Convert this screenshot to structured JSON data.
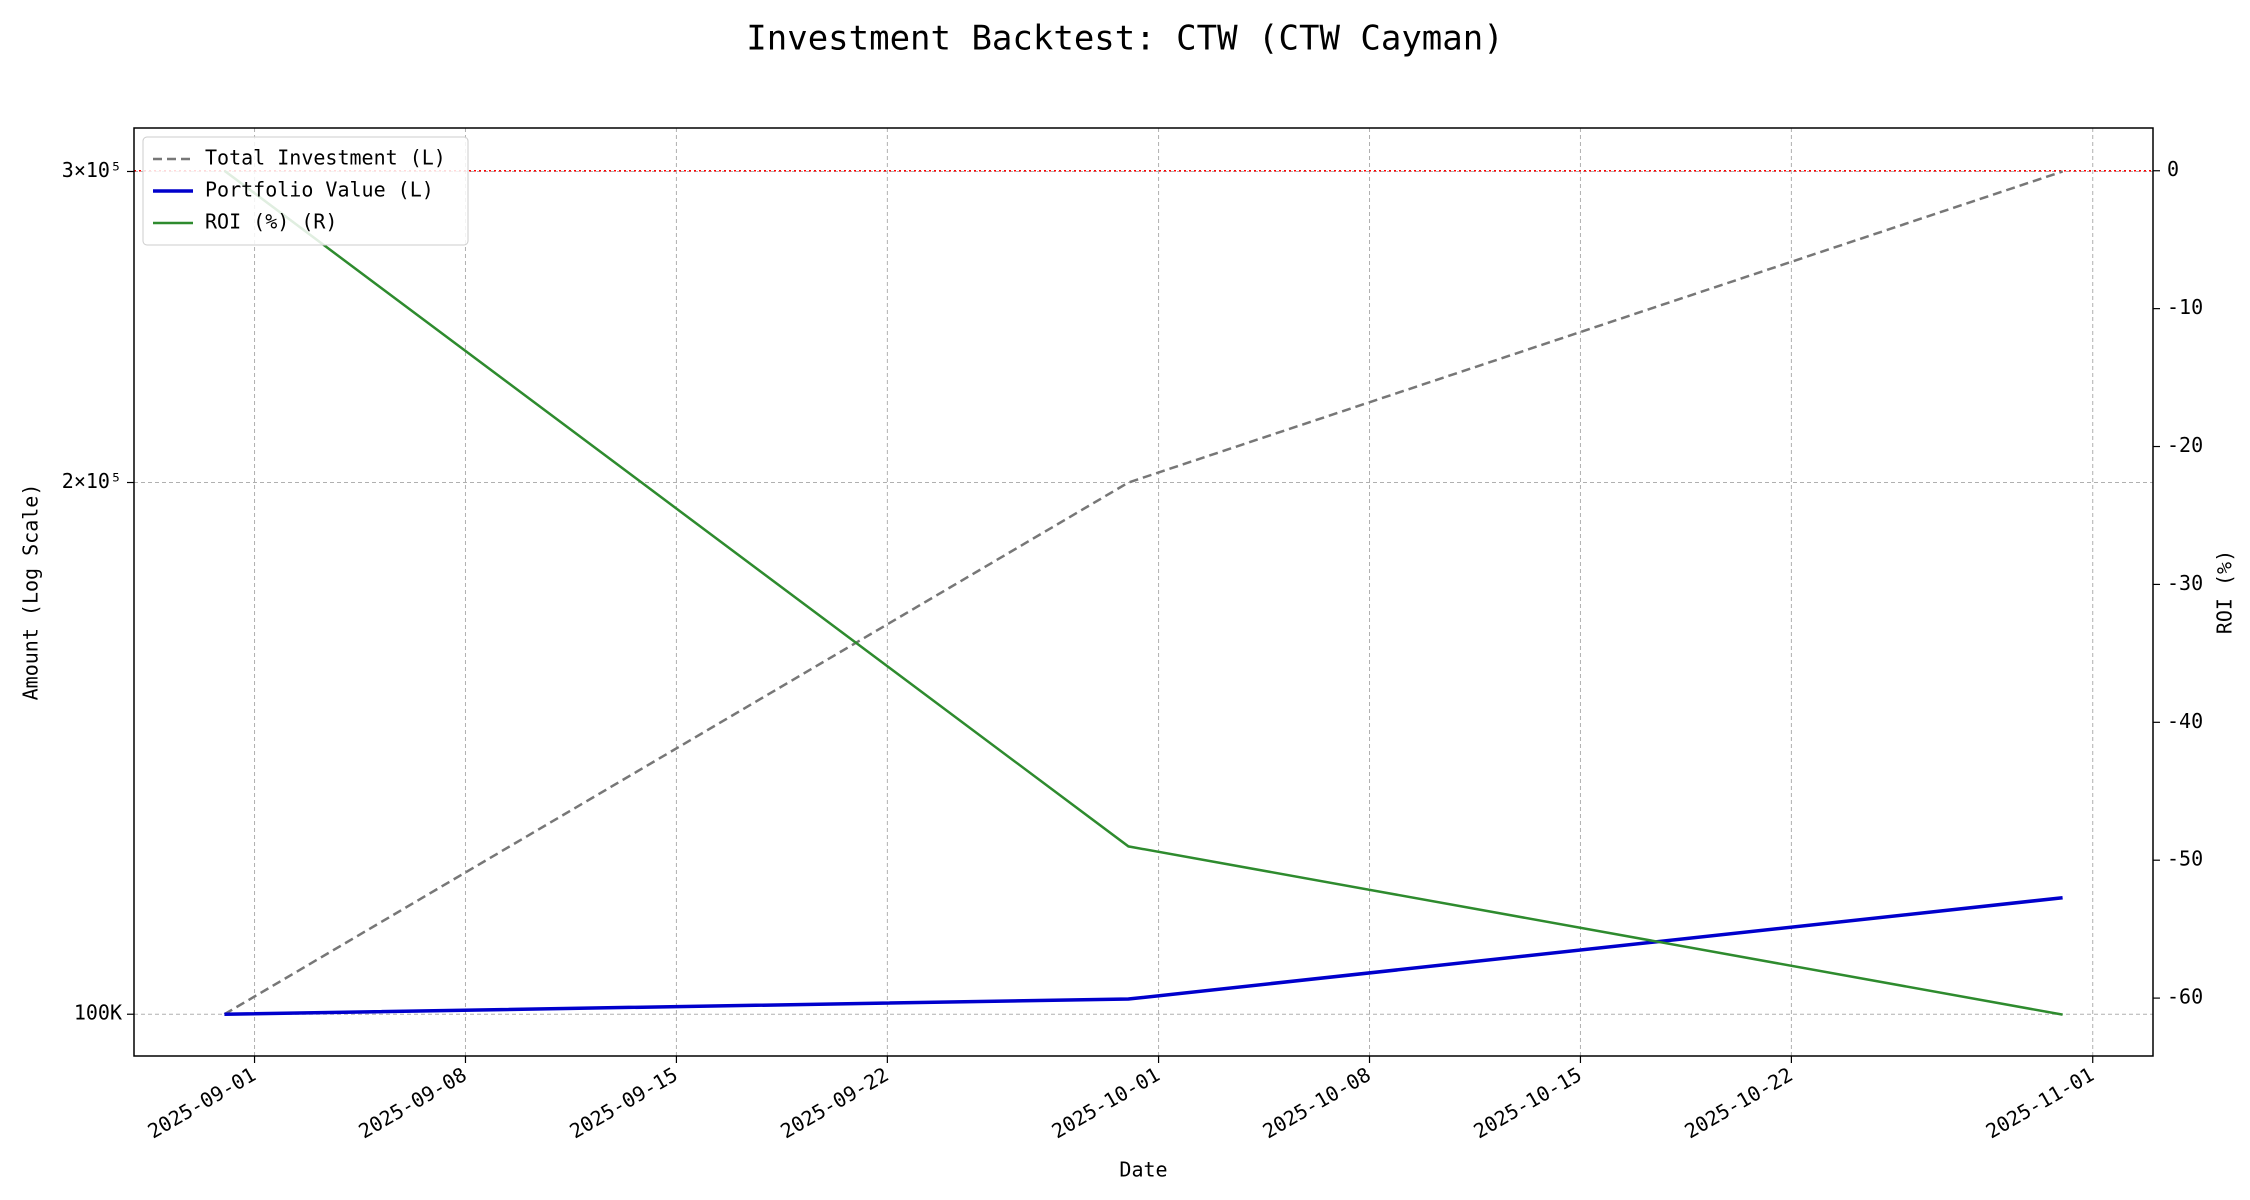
{
  "chart_data": {
    "type": "line",
    "title": "Investment Backtest: CTW (CTW Cayman)",
    "xlabel": "Date",
    "ylabel": "Amount (Log Scale)",
    "y2label": "ROI (%)",
    "ylabel_color": "#0000cc",
    "y2label_color": "#228b22",
    "x": [
      "2025-08-31",
      "2025-09-30",
      "2025-10-31"
    ],
    "series": [
      {
        "name": "Total Investment (L)",
        "color": "#777777",
        "dash": true,
        "width": 2.5,
        "values": [
          100000,
          200000,
          300000
        ]
      },
      {
        "name": "Portfolio Value (L)",
        "color": "#0000cc",
        "dash": false,
        "width": 3.5,
        "values": [
          100000,
          102000,
          116400
        ]
      },
      {
        "name": "ROI (%) (R)",
        "color": "#2e8b2e",
        "dash": false,
        "width": 2.5,
        "axis": "y2",
        "values": [
          0,
          -49,
          -61.2
        ]
      }
    ],
    "xlim": [
      "2025-08-28",
      "2025-11-03"
    ],
    "xticks": [
      "2025-09-01",
      "2025-09-08",
      "2025-09-15",
      "2025-09-22",
      "2025-10-01",
      "2025-10-08",
      "2025-10-15",
      "2025-10-22",
      "2025-11-01"
    ],
    "ylog": true,
    "ylim": [
      94700,
      317500
    ],
    "yticks": [
      {
        "value": 100000,
        "label": "100K"
      },
      {
        "value": 200000,
        "label": "2×10⁵"
      },
      {
        "value": 300000,
        "label": "3×10⁵"
      }
    ],
    "y2lim": [
      -64.2,
      3.1
    ],
    "y2ticks": [
      0,
      -10,
      -20,
      -30,
      -40,
      -50,
      -60
    ],
    "reference_lines": [
      {
        "value": 0,
        "axis": "y2",
        "color": "#ff0000"
      }
    ],
    "grid": true,
    "legend": "upper left"
  }
}
